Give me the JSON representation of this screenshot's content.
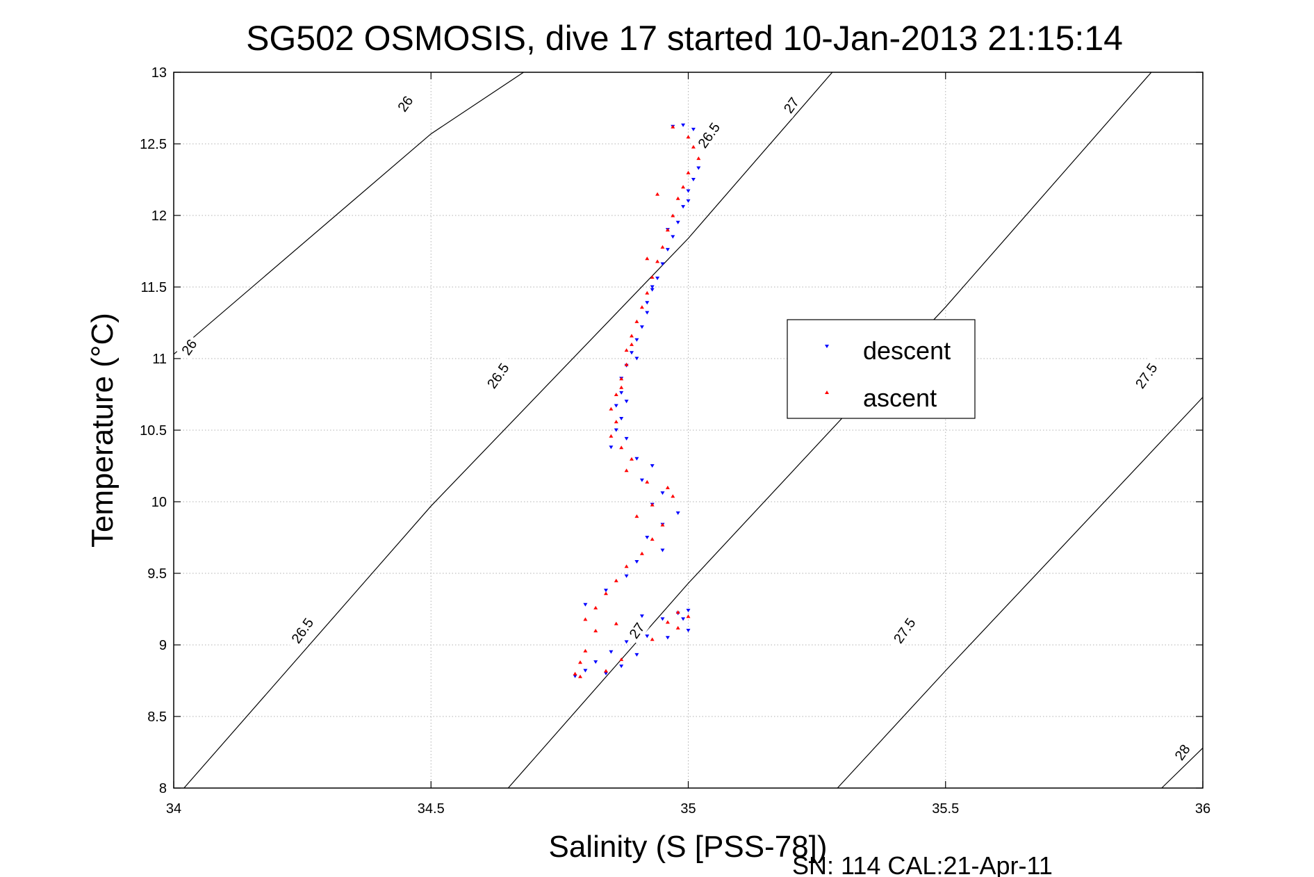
{
  "chart_data": {
    "type": "scatter",
    "title": "SG502 OSMOSIS, dive 17 started 10-Jan-2013 21:15:14",
    "xlabel": "Salinity (S [PSS-78])",
    "ylabel": "Temperature (°C)",
    "footer": "SN: 114  CAL:21-Apr-11",
    "xlim": [
      34,
      36
    ],
    "ylim": [
      8,
      13
    ],
    "x_ticks": [
      34,
      34.5,
      35,
      35.5,
      36
    ],
    "x_tick_labels": [
      "34",
      "34.5",
      "35",
      "35.5",
      "36"
    ],
    "y_ticks": [
      8,
      8.5,
      9,
      9.5,
      10,
      10.5,
      11,
      11.5,
      12,
      12.5,
      13
    ],
    "y_tick_labels": [
      "8",
      "8.5",
      "9",
      "9.5",
      "10",
      "10.5",
      "11",
      "11.5",
      "12",
      "12.5",
      "13"
    ],
    "grid": true,
    "legend_position": "right-center",
    "colors": {
      "descent": "#0000ff",
      "ascent": "#ff0000",
      "contour": "#000000"
    },
    "contours": [
      {
        "level": 26,
        "points": [
          [
            34.0,
            11.03
          ],
          [
            34.5,
            12.57
          ],
          [
            34.68,
            13.0
          ]
        ]
      },
      {
        "level": 26.5,
        "points": [
          [
            34.02,
            8.0
          ],
          [
            34.5,
            9.97
          ],
          [
            35.0,
            11.84
          ],
          [
            35.28,
            13.0
          ]
        ]
      },
      {
        "level": 27,
        "points": [
          [
            34.65,
            8.0
          ],
          [
            35.0,
            9.43
          ],
          [
            35.5,
            11.36
          ],
          [
            35.9,
            13.0
          ]
        ]
      },
      {
        "level": 27.5,
        "points": [
          [
            35.29,
            8.0
          ],
          [
            35.5,
            8.82
          ],
          [
            36.0,
            10.73
          ]
        ]
      },
      {
        "level": 28,
        "points": [
          [
            35.92,
            8.0
          ],
          [
            36.0,
            8.28
          ]
        ]
      }
    ],
    "contour_labels": [
      {
        "text": "26",
        "x": 34.45,
        "y": 12.78
      },
      {
        "text": "26",
        "x": 34.03,
        "y": 11.08
      },
      {
        "text": "26.5",
        "x": 35.04,
        "y": 12.56
      },
      {
        "text": "26.5",
        "x": 34.63,
        "y": 10.88
      },
      {
        "text": "26.5",
        "x": 34.25,
        "y": 9.1
      },
      {
        "text": "27",
        "x": 35.2,
        "y": 12.77
      },
      {
        "text": "27",
        "x": 34.9,
        "y": 9.1
      },
      {
        "text": "27.5",
        "x": 35.89,
        "y": 10.88
      },
      {
        "text": "27.5",
        "x": 35.42,
        "y": 9.1
      },
      {
        "text": "28",
        "x": 35.96,
        "y": 8.25
      }
    ],
    "series": [
      {
        "name": "descent",
        "marker": "triangle-down",
        "points": [
          [
            35.02,
            12.33
          ],
          [
            35.01,
            12.25
          ],
          [
            35.0,
            12.17
          ],
          [
            34.99,
            12.06
          ],
          [
            34.98,
            11.95
          ],
          [
            34.97,
            11.85
          ],
          [
            34.96,
            11.76
          ],
          [
            34.95,
            11.66
          ],
          [
            34.94,
            11.56
          ],
          [
            34.93,
            11.48
          ],
          [
            34.92,
            11.39
          ],
          [
            34.92,
            11.32
          ],
          [
            34.91,
            11.22
          ],
          [
            34.9,
            11.13
          ],
          [
            34.89,
            11.04
          ],
          [
            34.88,
            10.95
          ],
          [
            34.87,
            10.86
          ],
          [
            34.87,
            10.76
          ],
          [
            34.86,
            10.67
          ],
          [
            34.87,
            10.58
          ],
          [
            34.86,
            10.5
          ],
          [
            34.88,
            10.44
          ],
          [
            34.85,
            10.38
          ],
          [
            34.9,
            10.3
          ],
          [
            34.93,
            10.25
          ],
          [
            34.91,
            10.15
          ],
          [
            34.95,
            10.06
          ],
          [
            34.93,
            9.98
          ],
          [
            34.98,
            9.92
          ],
          [
            34.95,
            9.84
          ],
          [
            34.92,
            9.75
          ],
          [
            34.95,
            9.66
          ],
          [
            34.9,
            9.58
          ],
          [
            34.88,
            9.48
          ],
          [
            34.84,
            9.38
          ],
          [
            34.8,
            9.28
          ],
          [
            34.91,
            9.2
          ],
          [
            34.95,
            9.18
          ],
          [
            34.98,
            9.22
          ],
          [
            35.0,
            9.1
          ],
          [
            34.92,
            9.06
          ],
          [
            34.88,
            9.02
          ],
          [
            34.85,
            8.95
          ],
          [
            34.82,
            8.88
          ],
          [
            34.8,
            8.82
          ],
          [
            34.78,
            8.78
          ],
          [
            34.84,
            8.8
          ],
          [
            34.87,
            8.85
          ],
          [
            34.9,
            8.93
          ],
          [
            34.96,
            9.05
          ],
          [
            34.99,
            9.18
          ],
          [
            35.0,
            9.24
          ],
          [
            35.01,
            12.6
          ],
          [
            34.99,
            12.63
          ],
          [
            34.97,
            12.62
          ],
          [
            35.0,
            12.1
          ],
          [
            34.96,
            11.9
          ],
          [
            34.93,
            11.5
          ],
          [
            34.9,
            11.0
          ],
          [
            34.88,
            10.7
          ]
        ]
      },
      {
        "name": "ascent",
        "marker": "triangle-up",
        "points": [
          [
            34.97,
            12.62
          ],
          [
            35.0,
            12.55
          ],
          [
            35.01,
            12.48
          ],
          [
            35.02,
            12.4
          ],
          [
            35.0,
            12.3
          ],
          [
            34.99,
            12.2
          ],
          [
            34.98,
            12.12
          ],
          [
            34.97,
            12.0
          ],
          [
            34.96,
            11.9
          ],
          [
            34.95,
            11.78
          ],
          [
            34.94,
            11.68
          ],
          [
            34.93,
            11.57
          ],
          [
            34.92,
            11.46
          ],
          [
            34.91,
            11.36
          ],
          [
            34.9,
            11.26
          ],
          [
            34.89,
            11.16
          ],
          [
            34.88,
            11.06
          ],
          [
            34.88,
            10.96
          ],
          [
            34.87,
            10.86
          ],
          [
            34.86,
            10.75
          ],
          [
            34.85,
            10.65
          ],
          [
            34.86,
            10.56
          ],
          [
            34.85,
            10.46
          ],
          [
            34.87,
            10.38
          ],
          [
            34.89,
            10.3
          ],
          [
            34.88,
            10.22
          ],
          [
            34.92,
            10.14
          ],
          [
            34.96,
            10.1
          ],
          [
            34.97,
            10.04
          ],
          [
            34.93,
            9.98
          ],
          [
            34.9,
            9.9
          ],
          [
            34.95,
            9.84
          ],
          [
            34.93,
            9.74
          ],
          [
            34.91,
            9.64
          ],
          [
            34.88,
            9.55
          ],
          [
            34.86,
            9.45
          ],
          [
            34.84,
            9.36
          ],
          [
            34.82,
            9.26
          ],
          [
            34.8,
            9.18
          ],
          [
            34.82,
            9.1
          ],
          [
            34.8,
            8.96
          ],
          [
            34.79,
            8.88
          ],
          [
            34.78,
            8.8
          ],
          [
            34.79,
            8.78
          ],
          [
            34.84,
            8.82
          ],
          [
            34.87,
            8.9
          ],
          [
            34.93,
            9.04
          ],
          [
            34.96,
            9.16
          ],
          [
            34.98,
            9.23
          ],
          [
            35.0,
            9.2
          ],
          [
            34.98,
            9.12
          ],
          [
            34.86,
            9.15
          ],
          [
            34.94,
            12.15
          ],
          [
            34.92,
            11.7
          ],
          [
            34.89,
            11.1
          ],
          [
            34.87,
            10.8
          ]
        ]
      }
    ]
  }
}
